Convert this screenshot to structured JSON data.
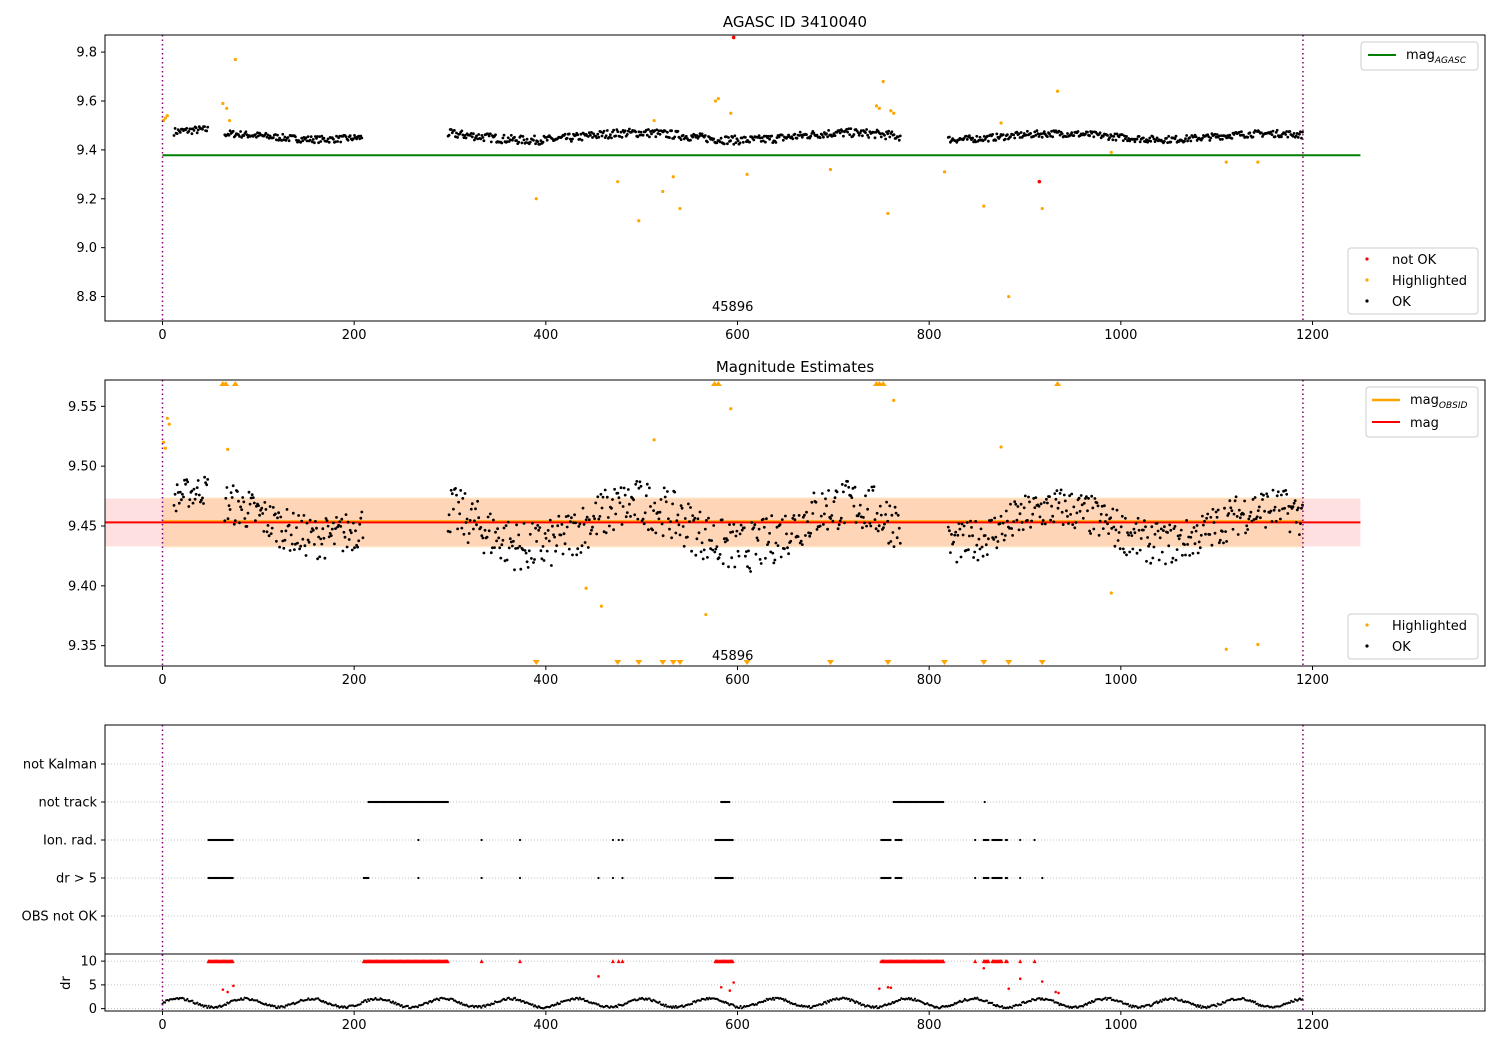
{
  "chart_data": [
    {
      "type": "scatter",
      "title": "AGASC ID 3410040",
      "xlim": [
        -60,
        1380
      ],
      "ylim": [
        8.7,
        9.87
      ],
      "xticks": [
        0,
        200,
        400,
        600,
        800,
        1000,
        1200
      ],
      "xtick_labels": [
        "0",
        "200",
        "400",
        "600",
        "800",
        "1000",
        "1200"
      ],
      "yticks": [
        8.8,
        9.0,
        9.2,
        9.4,
        9.6,
        9.8
      ],
      "ytick_labels": [
        "8.8",
        "9.0",
        "9.2",
        "9.4",
        "9.6",
        "9.8"
      ],
      "annotation": {
        "x": 595,
        "y": 8.74,
        "text": "45896"
      },
      "vlines": [
        0,
        1190
      ],
      "hline": {
        "name": "mag_AGASC",
        "label_main": "mag",
        "label_sub": "AGASC",
        "value": 9.378,
        "x_range": [
          0,
          1250
        ],
        "color": "#008000"
      },
      "legend_lines": [
        {
          "label_main": "mag",
          "label_sub": "AGASC",
          "color": "#008000",
          "placement": "top-right"
        }
      ],
      "legend_points": [
        {
          "label": "not OK",
          "color": "#ff0000"
        },
        {
          "label": "Highlighted",
          "color": "#ffa500"
        },
        {
          "label": "OK",
          "color": "#000000"
        }
      ],
      "ok_segments": [
        {
          "x0": 12,
          "x1": 48,
          "y": 9.47,
          "spread": 0.022
        },
        {
          "x0": 65,
          "x1": 208,
          "y": 9.455,
          "spread": 0.02
        },
        {
          "x0": 298,
          "x1": 770,
          "y": 9.455,
          "spread": 0.025
        },
        {
          "x0": 820,
          "x1": 1190,
          "y": 9.455,
          "spread": 0.02
        }
      ],
      "highlighted": [
        {
          "x": 1,
          "y": 9.52
        },
        {
          "x": 3,
          "y": 9.53
        },
        {
          "x": 5,
          "y": 9.54
        },
        {
          "x": 63,
          "y": 9.59
        },
        {
          "x": 67,
          "y": 9.57
        },
        {
          "x": 70,
          "y": 9.52
        },
        {
          "x": 76,
          "y": 9.77
        },
        {
          "x": 390,
          "y": 9.2
        },
        {
          "x": 475,
          "y": 9.27
        },
        {
          "x": 497,
          "y": 9.11
        },
        {
          "x": 513,
          "y": 9.52
        },
        {
          "x": 522,
          "y": 9.23
        },
        {
          "x": 533,
          "y": 9.29
        },
        {
          "x": 540,
          "y": 9.16
        },
        {
          "x": 577,
          "y": 9.6
        },
        {
          "x": 580,
          "y": 9.61
        },
        {
          "x": 593,
          "y": 9.55
        },
        {
          "x": 610,
          "y": 9.3
        },
        {
          "x": 697,
          "y": 9.32
        },
        {
          "x": 745,
          "y": 9.58
        },
        {
          "x": 748,
          "y": 9.57
        },
        {
          "x": 752,
          "y": 9.68
        },
        {
          "x": 757,
          "y": 9.14
        },
        {
          "x": 760,
          "y": 9.56
        },
        {
          "x": 763,
          "y": 9.55
        },
        {
          "x": 816,
          "y": 9.31
        },
        {
          "x": 857,
          "y": 9.17
        },
        {
          "x": 875,
          "y": 9.51
        },
        {
          "x": 883,
          "y": 8.8
        },
        {
          "x": 918,
          "y": 9.16
        },
        {
          "x": 934,
          "y": 9.64
        },
        {
          "x": 990,
          "y": 9.39
        },
        {
          "x": 1110,
          "y": 9.35
        },
        {
          "x": 1143,
          "y": 9.35
        }
      ],
      "not_ok": [
        {
          "x": 596,
          "y": 9.86
        },
        {
          "x": 915,
          "y": 9.27
        }
      ]
    },
    {
      "type": "scatter",
      "title": "Magnitude Estimates",
      "xlim": [
        -60,
        1380
      ],
      "ylim": [
        9.333,
        9.572
      ],
      "xticks": [
        0,
        200,
        400,
        600,
        800,
        1000,
        1200
      ],
      "xtick_labels": [
        "0",
        "200",
        "400",
        "600",
        "800",
        "1000",
        "1200"
      ],
      "yticks": [
        9.35,
        9.4,
        9.45,
        9.5,
        9.55
      ],
      "ytick_labels": [
        "9.35",
        "9.40",
        "9.45",
        "9.50",
        "9.55"
      ],
      "annotation": {
        "x": 595,
        "y": 9.338,
        "text": "45896"
      },
      "vlines": [
        0,
        1190
      ],
      "mag_line": {
        "value": 9.453,
        "x_range": [
          -60,
          1250
        ],
        "color": "#ff0000"
      },
      "mag_band": {
        "y0": 9.433,
        "y1": 9.473,
        "x_range": [
          -60,
          1250
        ]
      },
      "mag_obsid_band": {
        "y0": 9.432,
        "y1": 9.474,
        "x_range": [
          0,
          1190
        ]
      },
      "legend_lines": [
        {
          "label_main": "mag",
          "label_sub": "OBSID",
          "color": "#ffa500",
          "placement": "top-right"
        },
        {
          "label_main": "mag",
          "label_sub": "",
          "color": "#ff0000",
          "placement": "top-right"
        }
      ],
      "legend_points": [
        {
          "label": "Highlighted",
          "color": "#ffa500"
        },
        {
          "label": "OK",
          "color": "#000000"
        }
      ],
      "ok_segments": [
        {
          "x0": 12,
          "x1": 48,
          "y": 9.47,
          "spread": 0.018
        },
        {
          "x0": 65,
          "x1": 210,
          "y": 9.455,
          "spread": 0.025
        },
        {
          "x0": 298,
          "x1": 770,
          "y": 9.45,
          "spread": 0.03
        },
        {
          "x0": 820,
          "x1": 1190,
          "y": 9.45,
          "spread": 0.025
        }
      ],
      "highlighted": [
        {
          "x": 1,
          "y": 9.52
        },
        {
          "x": 3,
          "y": 9.515
        },
        {
          "x": 5,
          "y": 9.54
        },
        {
          "x": 7,
          "y": 9.535
        },
        {
          "x": 68,
          "y": 9.514
        },
        {
          "x": 442,
          "y": 9.398
        },
        {
          "x": 458,
          "y": 9.383
        },
        {
          "x": 513,
          "y": 9.522
        },
        {
          "x": 567,
          "y": 9.376
        },
        {
          "x": 593,
          "y": 9.548
        },
        {
          "x": 763,
          "y": 9.555
        },
        {
          "x": 875,
          "y": 9.516
        },
        {
          "x": 990,
          "y": 9.394
        },
        {
          "x": 1110,
          "y": 9.347
        },
        {
          "x": 1143,
          "y": 9.351
        }
      ],
      "clipped_high": [
        63,
        66,
        76,
        576,
        580,
        745,
        748,
        752,
        934
      ],
      "clipped_low": [
        390,
        475,
        497,
        522,
        533,
        540,
        610,
        697,
        757,
        816,
        857,
        883,
        918
      ]
    },
    {
      "type": "scatter",
      "title": "",
      "xlim": [
        -60,
        1380
      ],
      "xticks": [
        0,
        200,
        400,
        600,
        800,
        1000,
        1200
      ],
      "xtick_labels": [
        "0",
        "200",
        "400",
        "600",
        "800",
        "1000",
        "1200"
      ],
      "flag_rows": [
        "not Kalman",
        "not track",
        "Ion. rad.",
        "dr > 5",
        "OBS not OK"
      ],
      "flags": {
        "not Kalman": [],
        "not track": [
          [
            215,
            298
          ],
          [
            583,
            592
          ],
          [
            763,
            815
          ],
          [
            858,
            858
          ]
        ],
        "Ion. rad.": [
          [
            48,
            74
          ],
          [
            267,
            267
          ],
          [
            333,
            333
          ],
          [
            373,
            373
          ],
          [
            470,
            470
          ],
          [
            476,
            476
          ],
          [
            480,
            480
          ],
          [
            577,
            596
          ],
          [
            750,
            760
          ],
          [
            765,
            772
          ],
          [
            848,
            848
          ],
          [
            857,
            863
          ],
          [
            866,
            876
          ],
          [
            880,
            882
          ],
          [
            895,
            895
          ],
          [
            910,
            910
          ]
        ],
        "dr > 5": [
          [
            48,
            74
          ],
          [
            210,
            215
          ],
          [
            267,
            267
          ],
          [
            333,
            333
          ],
          [
            373,
            373
          ],
          [
            455,
            455
          ],
          [
            470,
            470
          ],
          [
            480,
            480
          ],
          [
            577,
            596
          ],
          [
            750,
            760
          ],
          [
            765,
            772
          ],
          [
            848,
            848
          ],
          [
            857,
            863
          ],
          [
            866,
            876
          ],
          [
            880,
            882
          ],
          [
            895,
            895
          ],
          [
            918,
            918
          ]
        ],
        "OBS not OK": []
      },
      "dr_axis": {
        "ylabel": "dr",
        "ylim": [
          -0.5,
          11.5
        ],
        "yticks": [
          0,
          5,
          10
        ],
        "ytick_labels": [
          "0",
          "5",
          "10"
        ]
      },
      "dr_high": [
        [
          48,
          74
        ],
        [
          210,
          298
        ],
        [
          333,
          333
        ],
        [
          373,
          373
        ],
        [
          470,
          470
        ],
        [
          476,
          476
        ],
        [
          480,
          480
        ],
        [
          577,
          596
        ],
        [
          750,
          815
        ],
        [
          848,
          848
        ],
        [
          857,
          863
        ],
        [
          866,
          876
        ],
        [
          880,
          882
        ],
        [
          895,
          895
        ],
        [
          910,
          910
        ]
      ],
      "dr_red_mid": [
        {
          "x": 63,
          "y": 4.0
        },
        {
          "x": 68,
          "y": 3.5
        },
        {
          "x": 74,
          "y": 4.8
        },
        {
          "x": 455,
          "y": 6.8
        },
        {
          "x": 583,
          "y": 4.5
        },
        {
          "x": 592,
          "y": 3.8
        },
        {
          "x": 596,
          "y": 5.5
        },
        {
          "x": 748,
          "y": 4.2
        },
        {
          "x": 757,
          "y": 4.5
        },
        {
          "x": 760,
          "y": 4.4
        },
        {
          "x": 857,
          "y": 8.5
        },
        {
          "x": 883,
          "y": 4.2
        },
        {
          "x": 895,
          "y": 6.3
        },
        {
          "x": 918,
          "y": 5.7
        },
        {
          "x": 932,
          "y": 3.5
        },
        {
          "x": 935,
          "y": 3.3
        }
      ],
      "vlines": [
        0,
        1190
      ]
    }
  ]
}
